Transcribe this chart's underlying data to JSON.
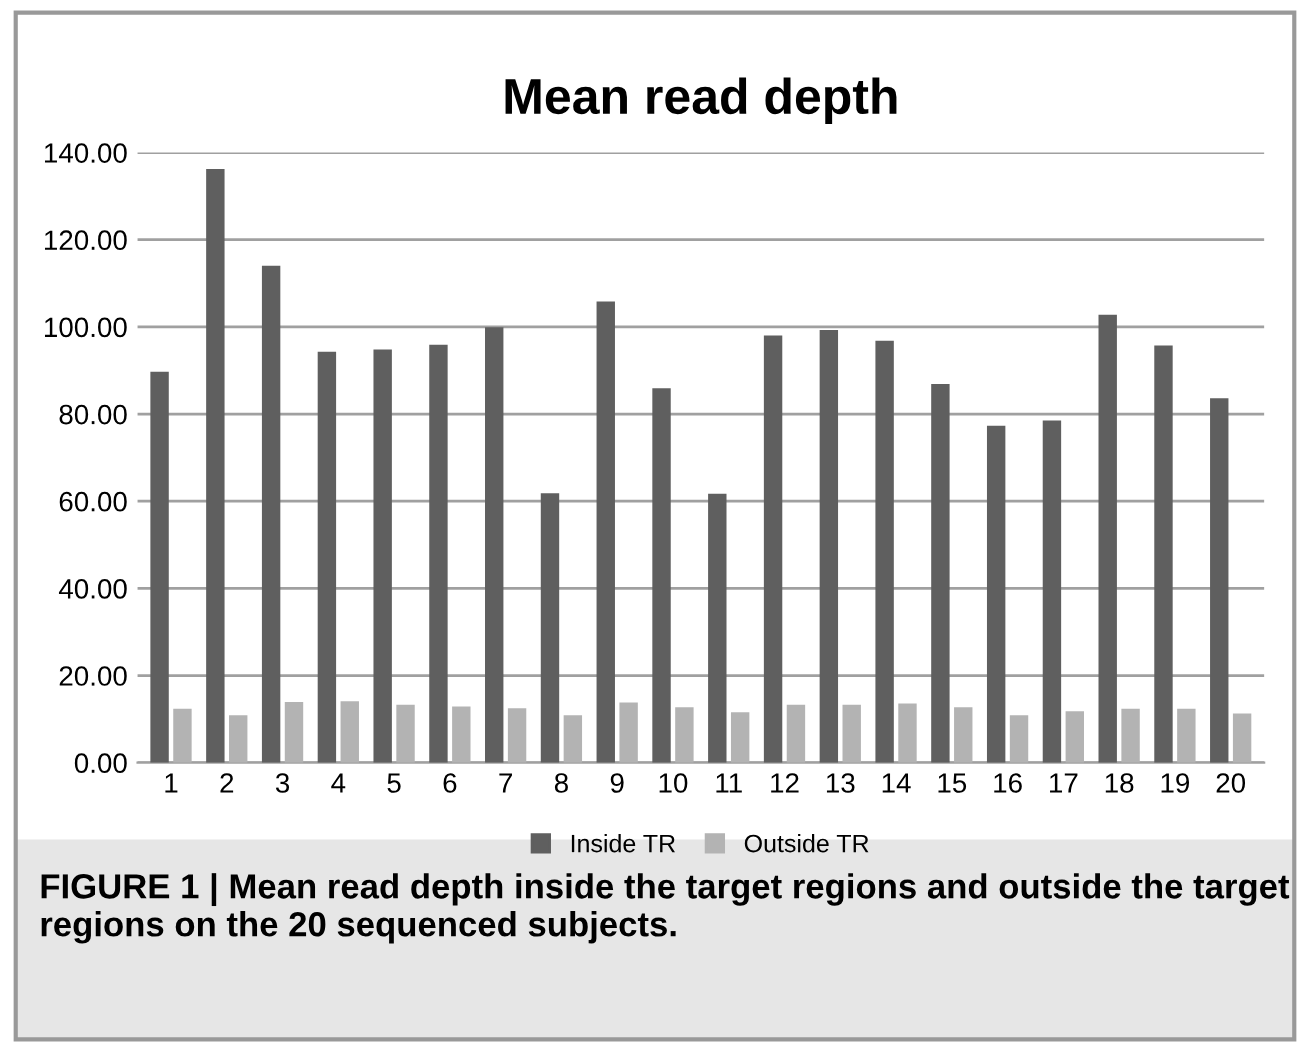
{
  "chart_data": {
    "type": "bar",
    "title": "Mean read depth",
    "categories": [
      "1",
      "2",
      "3",
      "4",
      "5",
      "6",
      "7",
      "8",
      "9",
      "10",
      "11",
      "12",
      "13",
      "14",
      "15",
      "16",
      "17",
      "18",
      "19",
      "20"
    ],
    "series": [
      {
        "name": "Inside TR",
        "color": "#5f5f5f",
        "values": [
          89.7,
          136.2,
          114.0,
          94.3,
          94.8,
          95.9,
          99.9,
          61.8,
          105.8,
          85.9,
          61.7,
          98.0,
          99.3,
          96.8,
          86.9,
          77.3,
          78.5,
          102.8,
          95.7,
          83.6
        ]
      },
      {
        "name": "Outside TR",
        "color": "#b3b3b3",
        "values": [
          12.4,
          10.9,
          13.9,
          14.1,
          13.3,
          12.9,
          12.5,
          10.9,
          13.8,
          12.7,
          11.6,
          13.3,
          13.3,
          13.6,
          12.7,
          10.9,
          11.8,
          12.4,
          12.4,
          11.3
        ]
      }
    ],
    "ylim": [
      0,
      140
    ],
    "yticks": [
      {
        "value": 0,
        "label": "0.00"
      },
      {
        "value": 20,
        "label": "20.00"
      },
      {
        "value": 40,
        "label": "40.00"
      },
      {
        "value": 60,
        "label": "60.00"
      },
      {
        "value": 80,
        "label": "80.00"
      },
      {
        "value": 100,
        "label": "100.00"
      },
      {
        "value": 120,
        "label": "120.00"
      },
      {
        "value": 140,
        "label": "140.00"
      }
    ],
    "grid": "y",
    "legend": "bottom",
    "annotations": [
      "FIGURE 1 | Mean read depth inside the target regions and outside the target regions on the 20 sequenced subjects."
    ]
  }
}
